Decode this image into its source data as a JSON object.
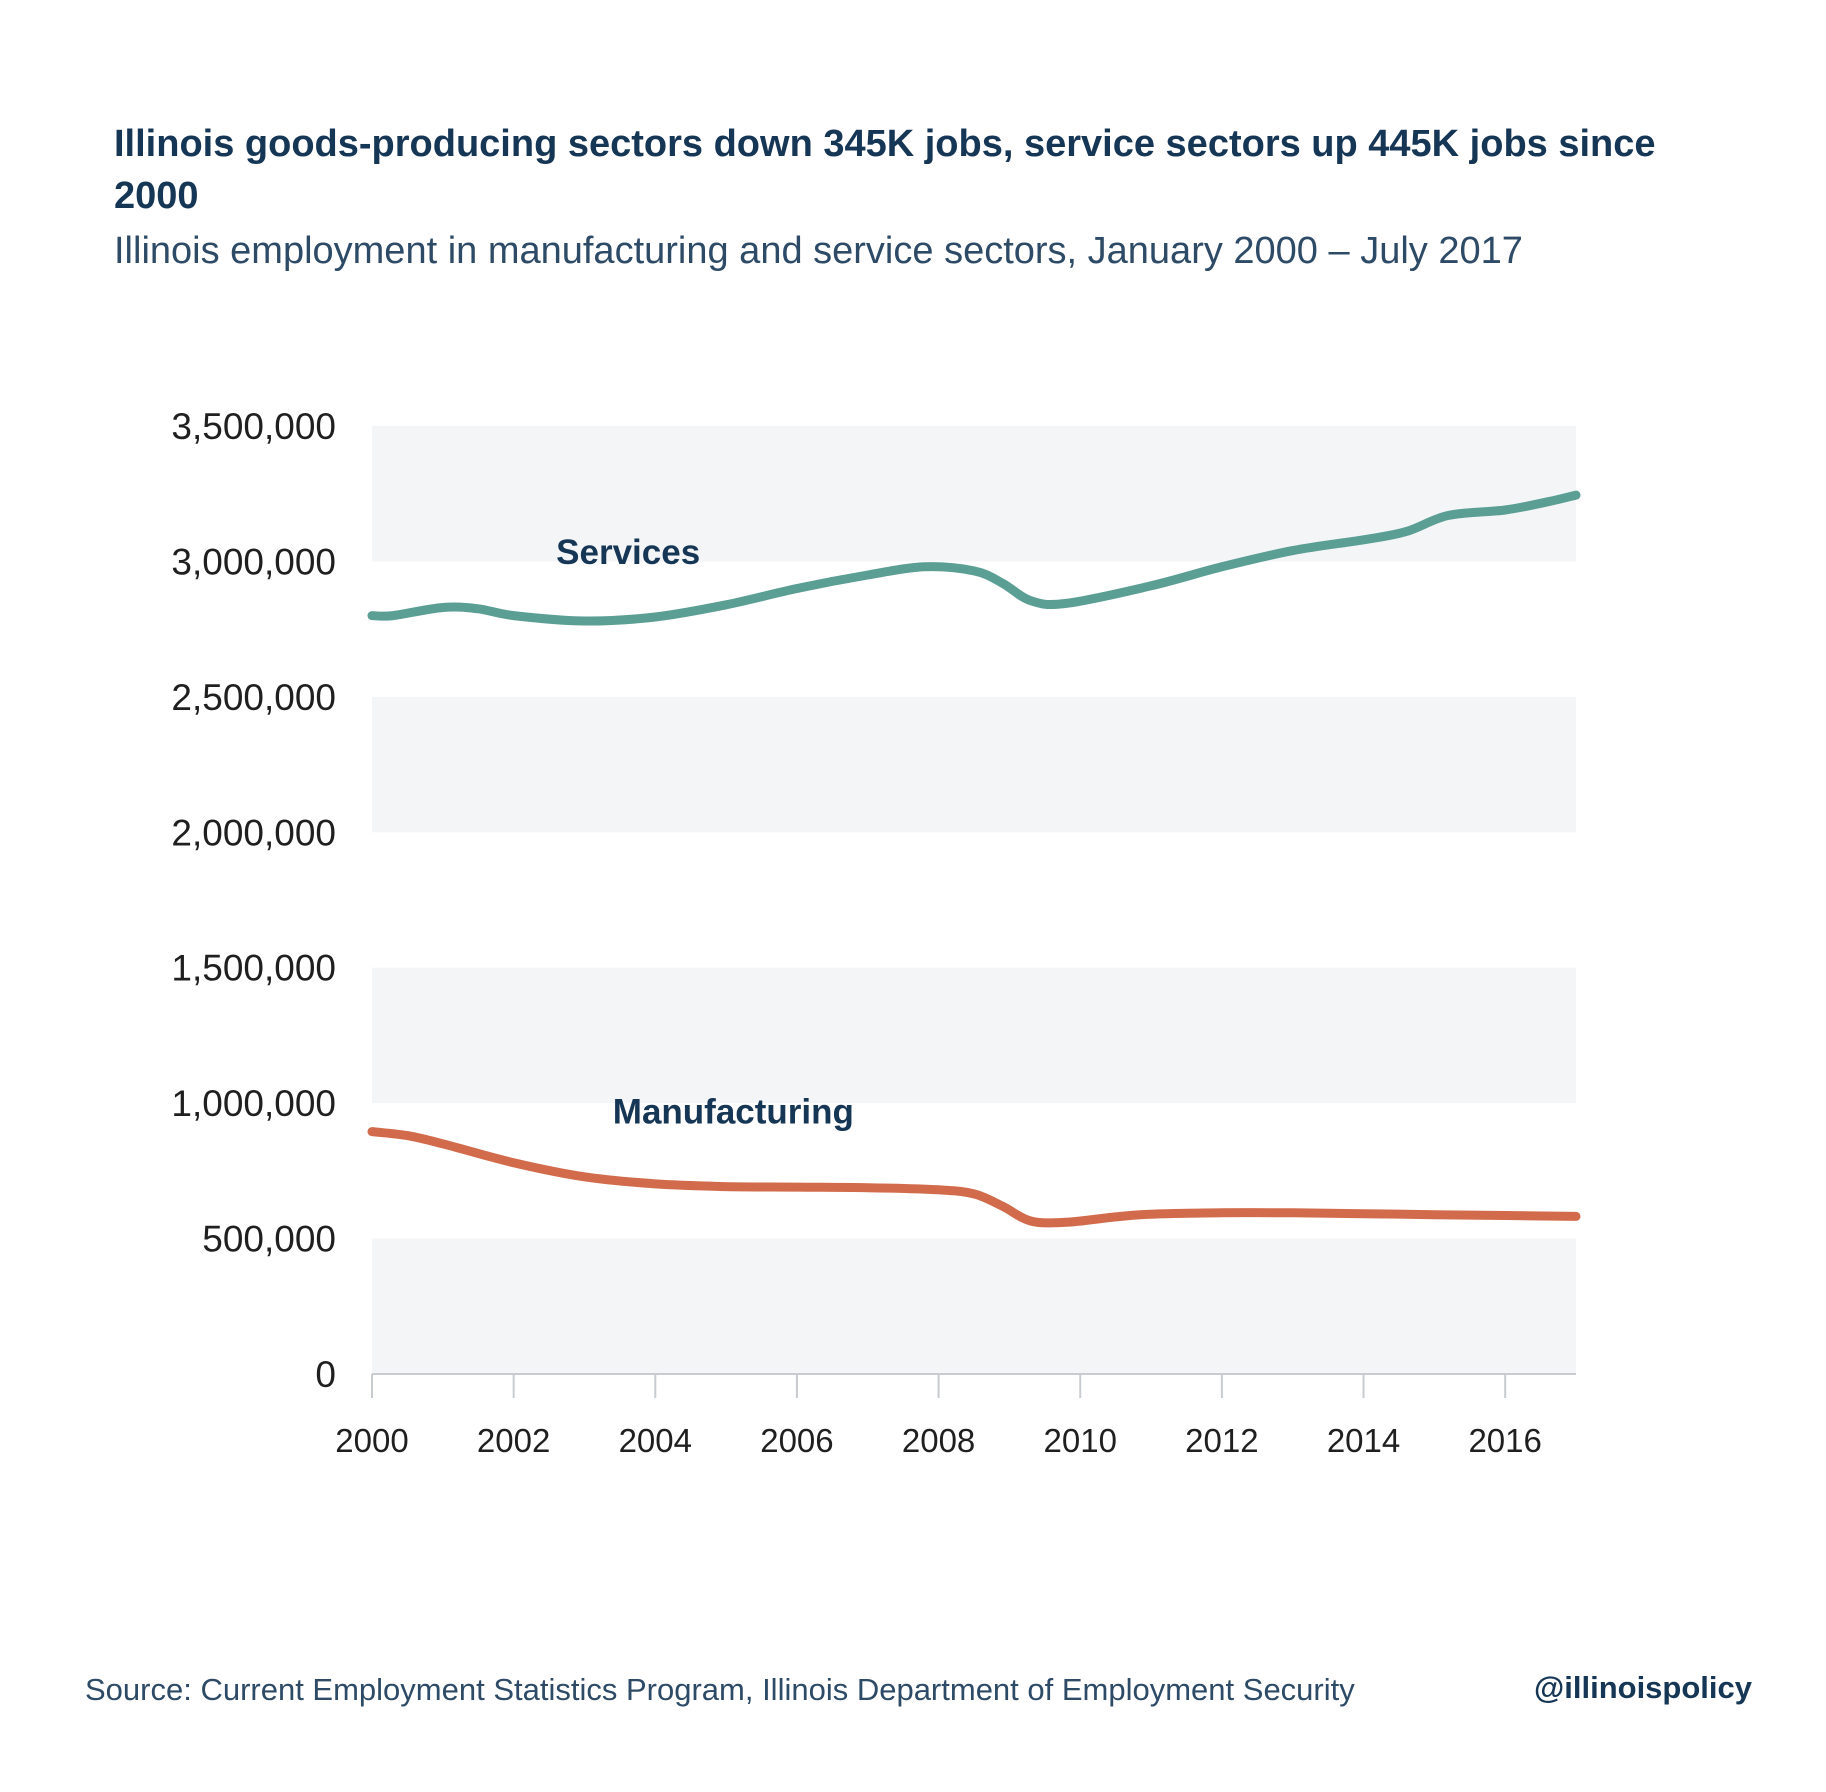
{
  "header": {
    "title": "Illinois goods-producing sectors down 345K jobs, service sectors up 445K jobs since 2000",
    "subtitle": "Illinois employment in manufacturing and service sectors, January 2000 – July 2017"
  },
  "footer": {
    "source": "Source: Current Employment Statistics Program, Illinois Department of Employment Security",
    "handle": "@illinoispolicy"
  },
  "chart_data": {
    "type": "line",
    "title": "Illinois goods-producing sectors down 345K jobs, service sectors up 445K jobs since 2000",
    "subtitle": "Illinois employment in manufacturing and service sectors, January 2000 – July 2017",
    "xlabel": "",
    "ylabel": "",
    "xlim": [
      2000,
      2017
    ],
    "ylim": [
      0,
      3500000
    ],
    "x_ticks": [
      2000,
      2002,
      2004,
      2006,
      2008,
      2010,
      2012,
      2014,
      2016
    ],
    "y_ticks": [
      0,
      500000,
      1000000,
      1500000,
      2000000,
      2500000,
      3000000,
      3500000
    ],
    "y_tick_labels": [
      "0",
      "500,000",
      "1,000,000",
      "1,500,000",
      "2,000,000",
      "2,500,000",
      "3,000,000",
      "3,500,000"
    ],
    "grid": "alternating horizontal bands",
    "legend": "direct labels on lines",
    "series": [
      {
        "name": "Services",
        "color": "#5a9e94",
        "label_color": "#163655",
        "label_at": [
          2002.6,
          2990000
        ],
        "points": [
          [
            2000.0,
            2800000
          ],
          [
            2000.3,
            2800000
          ],
          [
            2001.0,
            2830000
          ],
          [
            2001.5,
            2825000
          ],
          [
            2002.0,
            2800000
          ],
          [
            2003.0,
            2780000
          ],
          [
            2004.0,
            2795000
          ],
          [
            2005.0,
            2840000
          ],
          [
            2006.0,
            2900000
          ],
          [
            2007.0,
            2950000
          ],
          [
            2007.8,
            2980000
          ],
          [
            2008.5,
            2965000
          ],
          [
            2008.9,
            2920000
          ],
          [
            2009.3,
            2855000
          ],
          [
            2009.8,
            2845000
          ],
          [
            2011.0,
            2910000
          ],
          [
            2012.0,
            2980000
          ],
          [
            2013.0,
            3040000
          ],
          [
            2014.0,
            3080000
          ],
          [
            2014.6,
            3110000
          ],
          [
            2015.2,
            3170000
          ],
          [
            2016.0,
            3190000
          ],
          [
            2016.6,
            3220000
          ],
          [
            2017.0,
            3245000
          ]
        ]
      },
      {
        "name": "Manufacturing",
        "color": "#d26b4b",
        "label_color": "#163655",
        "label_at": [
          2003.4,
          925000
        ],
        "points": [
          [
            2000.0,
            895000
          ],
          [
            2000.5,
            880000
          ],
          [
            2001.0,
            850000
          ],
          [
            2002.0,
            780000
          ],
          [
            2003.0,
            728000
          ],
          [
            2004.0,
            702000
          ],
          [
            2005.0,
            692000
          ],
          [
            2006.0,
            690000
          ],
          [
            2007.0,
            688000
          ],
          [
            2008.0,
            680000
          ],
          [
            2008.5,
            665000
          ],
          [
            2008.9,
            620000
          ],
          [
            2009.3,
            565000
          ],
          [
            2009.8,
            560000
          ],
          [
            2010.5,
            580000
          ],
          [
            2011.0,
            590000
          ],
          [
            2012.0,
            595000
          ],
          [
            2013.0,
            595000
          ],
          [
            2014.0,
            592000
          ],
          [
            2015.0,
            588000
          ],
          [
            2016.0,
            585000
          ],
          [
            2017.0,
            582000
          ]
        ]
      }
    ]
  }
}
